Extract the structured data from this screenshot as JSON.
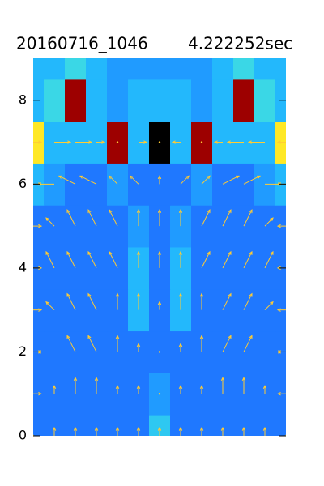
{
  "chart_data": {
    "type": "contour",
    "title": "20160716_1046",
    "subtitle": "4.222252sec",
    "ylim": [
      0,
      9
    ],
    "yticks": [
      0,
      2,
      4,
      6,
      8
    ],
    "y": [
      0,
      1,
      2,
      3,
      4,
      5,
      6,
      7,
      8,
      9
    ],
    "z": [
      [
        2,
        2,
        2,
        2,
        2,
        2,
        3.5,
        2,
        2,
        2,
        2,
        2,
        2
      ],
      [
        2,
        2,
        2,
        2,
        2,
        2,
        2.5,
        2,
        2,
        2,
        2,
        2,
        2
      ],
      [
        2,
        2,
        2,
        2,
        2,
        2,
        2,
        2,
        2,
        2,
        2,
        2,
        2
      ],
      [
        2,
        2,
        2,
        2,
        2,
        3,
        2,
        3,
        2,
        2,
        2,
        2,
        2
      ],
      [
        2,
        2,
        2,
        2,
        2,
        3,
        2,
        3,
        2,
        2,
        2,
        2,
        2
      ],
      [
        2,
        2,
        2,
        2,
        2,
        2.5,
        2,
        2.5,
        2,
        2,
        2,
        2,
        2
      ],
      [
        3,
        2.5,
        2,
        2,
        2.5,
        2,
        2,
        2,
        2.5,
        2,
        2,
        2.5,
        3
      ],
      [
        6,
        3,
        3,
        3,
        9,
        3,
        10,
        3,
        9,
        3,
        3,
        3,
        6
      ],
      [
        3,
        4,
        9,
        3,
        2.5,
        3,
        3,
        3,
        2.5,
        3,
        9,
        4,
        3
      ],
      [
        3,
        3,
        4,
        3,
        2.5,
        2.5,
        2.5,
        2.5,
        2.5,
        3,
        4,
        3,
        3
      ]
    ],
    "zlim": [
      0,
      10
    ],
    "colors": [
      "#0000c8",
      "#1e50ff",
      "#20b4ff",
      "#40e0e0",
      "#ffff30",
      "#ff8c00",
      "#e00000",
      "#000000"
    ],
    "vectors": {
      "color": "#ffcc33",
      "u": [
        [
          0,
          0,
          0,
          0,
          0,
          0,
          0,
          0,
          0,
          0,
          0,
          0,
          0
        ],
        [
          1,
          0,
          0,
          0,
          0,
          0,
          0,
          0,
          0,
          0,
          0,
          0,
          -1
        ],
        [
          1,
          -2,
          -1,
          -1,
          0,
          0,
          0,
          0,
          0,
          1,
          1,
          2,
          -1
        ],
        [
          1,
          -1,
          -1,
          -1,
          0,
          0,
          0,
          0,
          0,
          1,
          1,
          1,
          -1
        ],
        [
          1,
          -1,
          -1,
          -1,
          -1,
          0,
          0,
          0,
          1,
          1,
          1,
          1,
          -1
        ],
        [
          1,
          -1,
          -1,
          -1,
          -1,
          0,
          0,
          0,
          1,
          1,
          1,
          1,
          -1
        ],
        [
          1,
          -2,
          -2,
          -2,
          -1,
          -1,
          0,
          1,
          1,
          2,
          2,
          2,
          -1
        ],
        [
          1,
          2,
          2,
          1,
          0,
          1,
          0,
          -1,
          0,
          -1,
          -2,
          -2,
          -1
        ]
      ],
      "v": [
        [
          0,
          1,
          1,
          1,
          1,
          1,
          1,
          1,
          1,
          1,
          1,
          1,
          0
        ],
        [
          0,
          1,
          2,
          2,
          1,
          1,
          0,
          1,
          1,
          2,
          2,
          1,
          0
        ],
        [
          0,
          0,
          2,
          2,
          2,
          1,
          0,
          1,
          2,
          2,
          2,
          0,
          0
        ],
        [
          0,
          1,
          2,
          2,
          2,
          2,
          1,
          2,
          2,
          2,
          2,
          1,
          0
        ],
        [
          0,
          2,
          2,
          2,
          2,
          2,
          2,
          2,
          2,
          2,
          2,
          2,
          0
        ],
        [
          0,
          1,
          2,
          2,
          2,
          2,
          2,
          2,
          2,
          2,
          2,
          1,
          0
        ],
        [
          0,
          0,
          1,
          1,
          1,
          1,
          1,
          1,
          1,
          1,
          1,
          0,
          0
        ],
        [
          0,
          0,
          0,
          0,
          0,
          0,
          0,
          0,
          0,
          0,
          0,
          0,
          0
        ]
      ]
    }
  }
}
